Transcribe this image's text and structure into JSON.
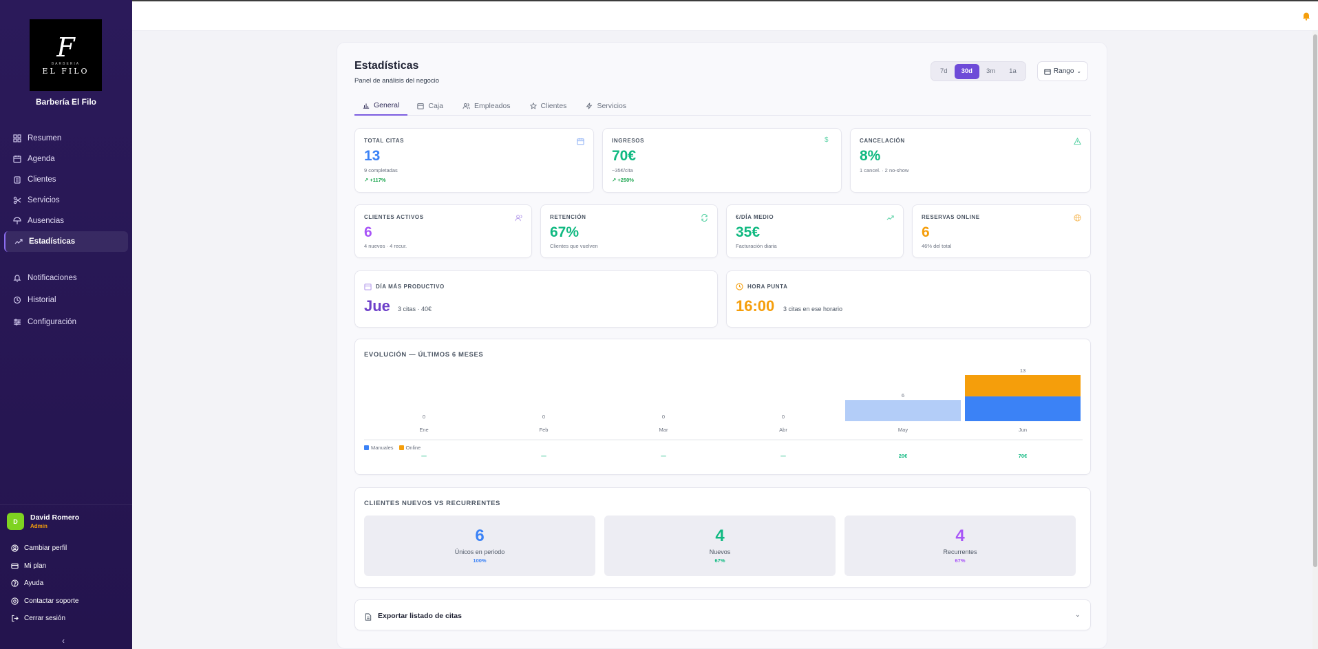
{
  "sidebar": {
    "logo": {
      "initial": "F",
      "small": "BARBERIA",
      "name": "EL FILO"
    },
    "brand_name": "Barbería El Filo",
    "nav": [
      {
        "label": "Resumen",
        "icon": "grid-icon"
      },
      {
        "label": "Agenda",
        "icon": "calendar-icon"
      },
      {
        "label": "Clientes",
        "icon": "clipboard-icon"
      },
      {
        "label": "Servicios",
        "icon": "scissors-icon"
      },
      {
        "label": "Ausencias",
        "icon": "umbrella-icon"
      },
      {
        "label": "Estadísticas",
        "icon": "trend-icon",
        "active": true
      },
      {
        "label": "Notificaciones",
        "icon": "bell-icon"
      },
      {
        "label": "Historial",
        "icon": "history-icon"
      },
      {
        "label": "Configuración",
        "icon": "sliders-icon"
      }
    ],
    "user": {
      "initial": "D",
      "name": "David Romero",
      "role": "Admin"
    },
    "links": [
      {
        "label": "Cambiar perfil",
        "icon": "user-circle-icon"
      },
      {
        "label": "Mi plan",
        "icon": "card-icon"
      },
      {
        "label": "Ayuda",
        "icon": "help-icon"
      },
      {
        "label": "Contactar soporte",
        "icon": "support-icon"
      },
      {
        "label": "Cerrar sesión",
        "icon": "logout-icon"
      }
    ],
    "collapse_icon": "chevron-left-icon"
  },
  "header": {
    "title": "Estadísticas",
    "subtitle": "Panel de análisis del negocio"
  },
  "ranges": [
    {
      "label": "7d",
      "active": false
    },
    {
      "label": "30d",
      "active": true
    },
    {
      "label": "3m",
      "active": false
    },
    {
      "label": "1a",
      "active": false
    }
  ],
  "rango_label": "Rango",
  "tabs": [
    {
      "label": "General",
      "active": true
    },
    {
      "label": "Caja"
    },
    {
      "label": "Empleados"
    },
    {
      "label": "Clientes"
    },
    {
      "label": "Servicios"
    }
  ],
  "kpis_row1": [
    {
      "label": "TOTAL CITAS",
      "value": "13",
      "sub": "9 completadas",
      "trend": "+117%",
      "color": "#3b82f6",
      "icon": "calendar-icon"
    },
    {
      "label": "INGRESOS",
      "value": "70€",
      "sub": "~35€/cita",
      "trend": "+250%",
      "color": "#10b981",
      "icon": "dollar-icon"
    },
    {
      "label": "CANCELACIÓN",
      "value": "8%",
      "sub": "1 cancel. · 2 no-show",
      "trend": "",
      "color": "#10b981",
      "icon": "alert-icon"
    }
  ],
  "kpis_row2": [
    {
      "label": "CLIENTES ACTIVOS",
      "value": "6",
      "sub": "4 nuevos · 4 recur.",
      "color": "#a855f7",
      "icon": "users-icon"
    },
    {
      "label": "RETENCIÓN",
      "value": "67%",
      "sub": "Clientes que vuelven",
      "color": "#10b981",
      "icon": "refresh-icon"
    },
    {
      "label": "€/DÍA MEDIO",
      "value": "35€",
      "sub": "Facturación diaria",
      "color": "#10b981",
      "icon": "trend-up-icon"
    },
    {
      "label": "RESERVAS ONLINE",
      "value": "6",
      "sub": "46% del total",
      "color": "#f59e0b",
      "icon": "globe-icon"
    }
  ],
  "highlights": [
    {
      "label": "DÍA MÁS PRODUCTIVO",
      "value": "Jue",
      "sub": "3 citas · 40€",
      "color": "#6d3fc9",
      "icon": "calendar-icon"
    },
    {
      "label": "HORA PUNTA",
      "value": "16:00",
      "sub": "3 citas en ese horario",
      "color": "#f59e0b",
      "icon": "clock-icon"
    }
  ],
  "evolution_title": "EVOLUCIÓN — ÚLTIMOS 6 MESES",
  "chart_data": {
    "type": "bar",
    "stacked": true,
    "categories": [
      "Ene",
      "Feb",
      "Mar",
      "Abr",
      "May",
      "Jun"
    ],
    "series": [
      {
        "name": "Manuales",
        "values": [
          0,
          0,
          0,
          0,
          6,
          7
        ],
        "color": "#3b82f6",
        "faded_color": "#b3cdf8"
      },
      {
        "name": "Online",
        "values": [
          0,
          0,
          0,
          0,
          0,
          6
        ],
        "color": "#f59e0b"
      }
    ],
    "totals": [
      "0",
      "0",
      "0",
      "0",
      "6",
      "13"
    ],
    "revenue": [
      "—",
      "—",
      "—",
      "—",
      "20€",
      "70€"
    ],
    "ylim": [
      0,
      13
    ]
  },
  "clients_title": "CLIENTES NUEVOS VS RECURRENTES",
  "client_stats": [
    {
      "value": "6",
      "label": "Únicos en periodo",
      "pct": "100%",
      "color": "#3b82f6"
    },
    {
      "value": "4",
      "label": "Nuevos",
      "pct": "67%",
      "color": "#10b981"
    },
    {
      "value": "4",
      "label": "Recurrentes",
      "pct": "67%",
      "color": "#a855f7"
    }
  ],
  "export_label": "Exportar listado de citas"
}
